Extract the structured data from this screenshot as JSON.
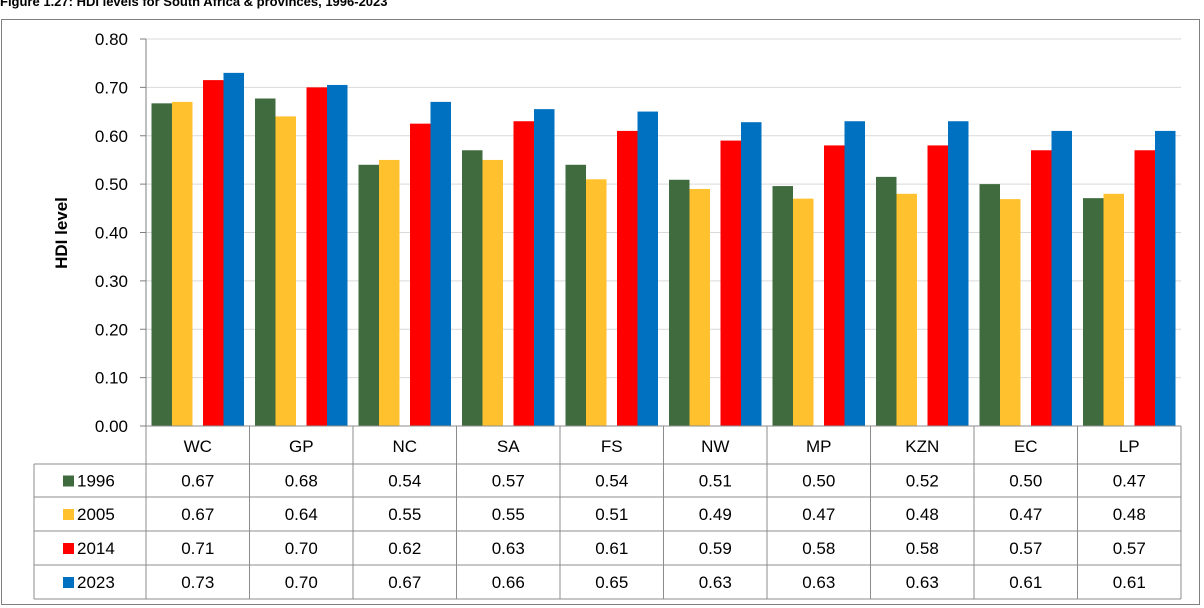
{
  "figure_title": "Figure 1.27: HDI levels for South Africa & provinces, 1996-2023",
  "chart_data": {
    "type": "bar",
    "title": "",
    "xlabel": "",
    "ylabel": "HDI level",
    "ylim": [
      0,
      0.8
    ],
    "yticks": [
      "0.00",
      "0.10",
      "0.20",
      "0.30",
      "0.40",
      "0.50",
      "0.60",
      "0.70",
      "0.80"
    ],
    "grid": true,
    "legend": "data-table",
    "categories": [
      "WC",
      "GP",
      "NC",
      "SA",
      "FS",
      "NW",
      "MP",
      "KZN",
      "EC",
      "LP"
    ],
    "series": [
      {
        "name": "1996",
        "color": "#3f6b3f",
        "values": [
          0.667,
          0.677,
          0.54,
          0.57,
          0.54,
          0.509,
          0.496,
          0.515,
          0.5,
          0.471
        ],
        "labels": [
          "0.67",
          "0.68",
          "0.54",
          "0.57",
          "0.54",
          "0.51",
          "0.50",
          "0.52",
          "0.50",
          "0.47"
        ]
      },
      {
        "name": "2005",
        "color": "#ffc12e",
        "values": [
          0.67,
          0.64,
          0.55,
          0.55,
          0.51,
          0.49,
          0.47,
          0.48,
          0.469,
          0.48
        ],
        "labels": [
          "0.67",
          "0.64",
          "0.55",
          "0.55",
          "0.51",
          "0.49",
          "0.47",
          "0.48",
          "0.47",
          "0.48"
        ]
      },
      {
        "name": "2014",
        "color": "#ff0000",
        "values": [
          0.715,
          0.7,
          0.625,
          0.63,
          0.61,
          0.59,
          0.58,
          0.58,
          0.57,
          0.57
        ],
        "labels": [
          "0.71",
          "0.70",
          "0.62",
          "0.63",
          "0.61",
          "0.59",
          "0.58",
          "0.58",
          "0.57",
          "0.57"
        ]
      },
      {
        "name": "2023",
        "color": "#0070c0",
        "values": [
          0.73,
          0.705,
          0.67,
          0.655,
          0.65,
          0.628,
          0.63,
          0.63,
          0.61,
          0.61
        ],
        "labels": [
          "0.73",
          "0.70",
          "0.67",
          "0.66",
          "0.65",
          "0.63",
          "0.63",
          "0.63",
          "0.61",
          "0.61"
        ]
      }
    ]
  },
  "colors": {
    "gridline": "#d9d9d9",
    "axis": "#7f7f7f",
    "table_border": "#8c8c8c"
  }
}
